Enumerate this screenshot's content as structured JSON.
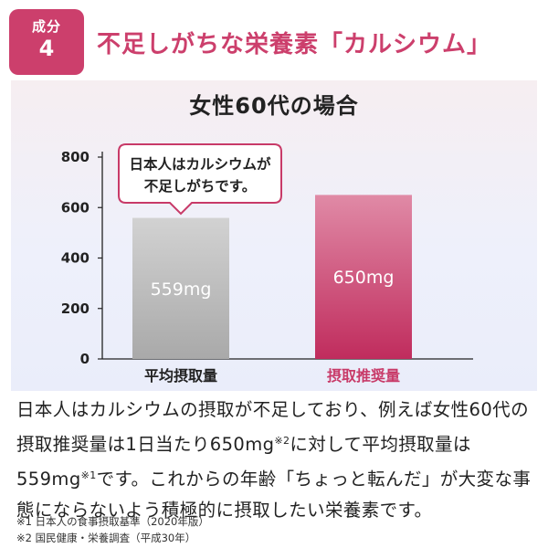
{
  "badge": {
    "label": "成分",
    "number": "4"
  },
  "heading": "不足しがちな栄養素「カルシウム」",
  "panel": {
    "title": "女性60代の場合"
  },
  "chart_data": {
    "type": "bar",
    "title": "女性60代の場合",
    "categories": [
      "平均摂取量",
      "摂取推奨量"
    ],
    "values": [
      559,
      650
    ],
    "value_labels": [
      "559mg",
      "650mg"
    ],
    "unit": "mg",
    "ylim": [
      0,
      800
    ],
    "yticks": [
      0,
      200,
      400,
      600,
      800
    ],
    "xlabel": "",
    "ylabel": "",
    "grid": false,
    "bar_colors": [
      "#b7b7b7",
      "#c83a68"
    ],
    "category_label_colors": [
      "#222222",
      "#c83a68"
    ],
    "annotation": {
      "lines": [
        "日本人はカルシウムが",
        "不足しがちです。"
      ],
      "target_category": "平均摂取量",
      "border_color": "#c83a68"
    }
  },
  "body": {
    "p1": "日本人はカルシウムの摂取が不足しており、例えば女性60代の摂取推奨量は1日当たり650mg",
    "sup2": "※2",
    "p2": "に対して平均摂取量は559mg",
    "sup1": "※1",
    "p3": "です。これからの年齢「ちょっと転んだ」が大変な事態にならないよう積極的に摂取したい栄養素です。"
  },
  "footnotes": {
    "fn1": "※1 日本人の食事摂取基準（2020年版）",
    "fn2": "※2 国民健康・栄養調査（平成30年）"
  },
  "colors": {
    "accent": "#cc3f6c",
    "bar_gray": "#b7b7b7",
    "bar_pink": "#c83a68"
  }
}
